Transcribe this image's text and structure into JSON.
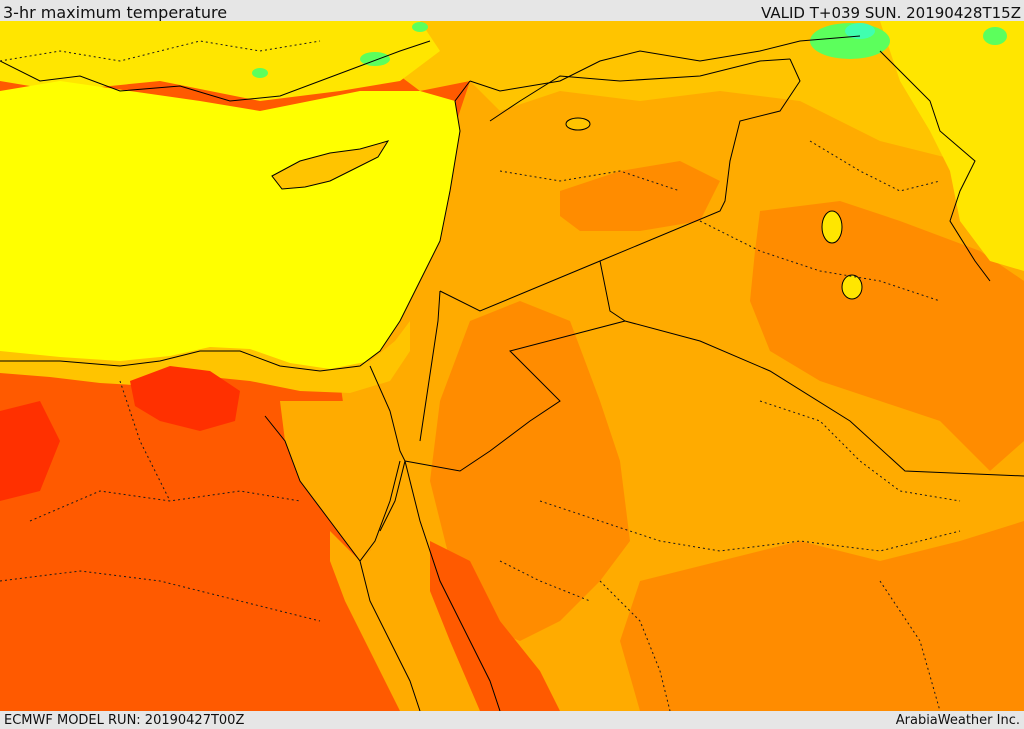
{
  "header": {
    "title": "3-hr maximum temperature",
    "valid_time": "VALID T+039 SUN. 20190428T15Z"
  },
  "footer": {
    "model_run": "ECMWF MODEL RUN: 20190427T00Z",
    "credit": "ArabiaWeather Inc."
  },
  "map": {
    "palette": {
      "sea_yellow": "#ffff00",
      "coast_yellow": "#ffe600",
      "light_orange": "#ffc400",
      "orange": "#ffab00",
      "dark_orange": "#ff8c00",
      "red_orange": "#ff5a00",
      "red": "#ff3000",
      "green": "#5cff5c",
      "cyan": "#40ffb0"
    },
    "lines": {
      "border": "#000000",
      "coastline": "#000000",
      "admin": "#1a1a1a"
    }
  }
}
